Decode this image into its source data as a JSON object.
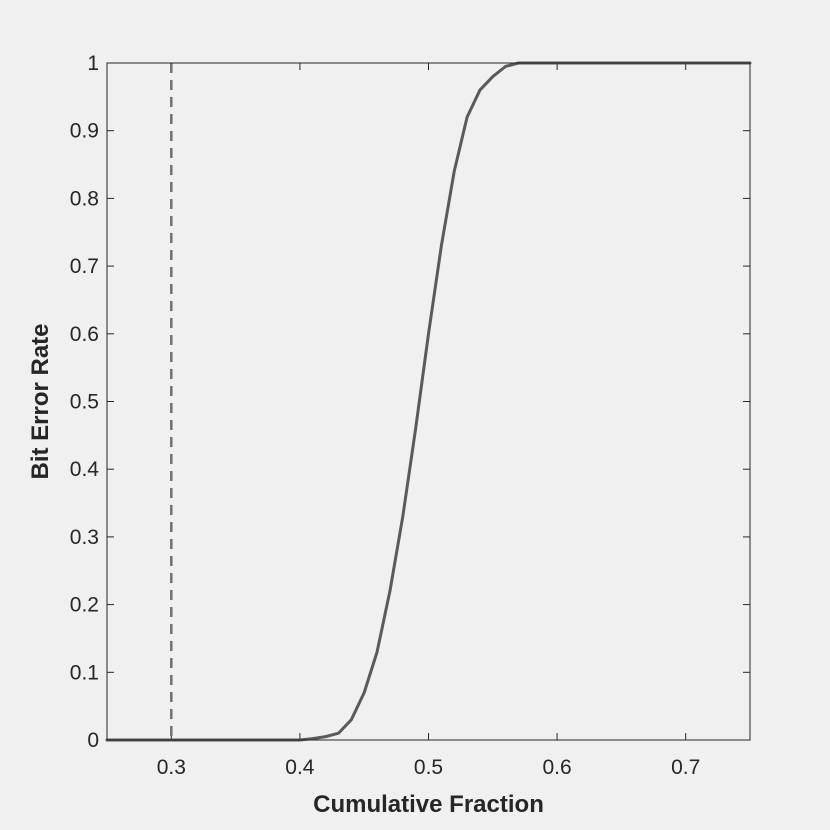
{
  "chart_data": {
    "type": "line",
    "title": "",
    "xlabel": "Cumulative Fraction",
    "ylabel": "Bit Error Rate",
    "xlim": [
      0.25,
      0.75
    ],
    "ylim": [
      0,
      1
    ],
    "xticks": [
      0.3,
      0.4,
      0.5,
      0.6,
      0.7
    ],
    "xtick_labels": [
      "0.3",
      "0.4",
      "0.5",
      "0.6",
      "0.7"
    ],
    "yticks": [
      0,
      0.1,
      0.2,
      0.3,
      0.4,
      0.5,
      0.6,
      0.7,
      0.8,
      0.9,
      1
    ],
    "ytick_labels": [
      "0",
      "0.1",
      "0.2",
      "0.3",
      "0.4",
      "0.5",
      "0.6",
      "0.7",
      "0.8",
      "0.9",
      "1"
    ],
    "grid": false,
    "reference_line": {
      "x": 0.3,
      "style": "dashed",
      "color": "#707070"
    },
    "series": [
      {
        "color": "#5a5a5a",
        "style": "solid",
        "x": [
          0.25,
          0.3,
          0.35,
          0.4,
          0.41,
          0.42,
          0.43,
          0.44,
          0.45,
          0.46,
          0.47,
          0.48,
          0.49,
          0.5,
          0.51,
          0.52,
          0.53,
          0.54,
          0.55,
          0.56,
          0.57,
          0.58,
          0.6,
          0.65,
          0.7,
          0.75
        ],
        "y": [
          0.0,
          0.0,
          0.0,
          0.0,
          0.002,
          0.005,
          0.01,
          0.03,
          0.07,
          0.13,
          0.22,
          0.33,
          0.46,
          0.6,
          0.73,
          0.84,
          0.92,
          0.96,
          0.98,
          0.995,
          1.0,
          1.0,
          1.0,
          1.0,
          1.0,
          1.0
        ]
      }
    ]
  }
}
